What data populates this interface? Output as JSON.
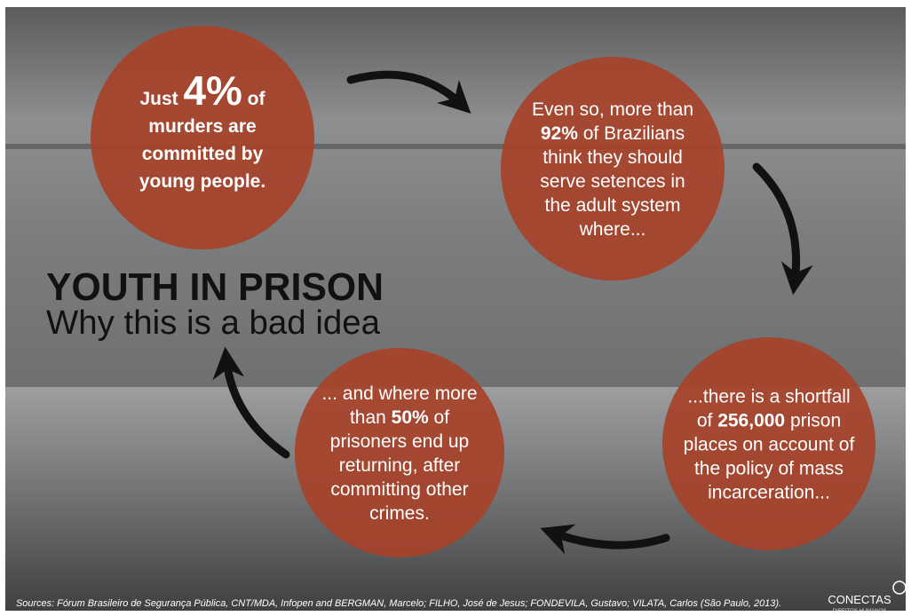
{
  "title": "YOUTH IN PRISON",
  "subtitle": "Why this is a bad idea",
  "circles": [
    {
      "lines": [
        [
          {
            "text": "Just ",
            "style": "bold"
          },
          {
            "text": "4%",
            "style": "big"
          },
          {
            "text": " of",
            "style": "bold"
          }
        ],
        [
          {
            "text": "murders are",
            "style": "bold"
          }
        ],
        [
          {
            "text": "committed by",
            "style": "bold"
          }
        ],
        [
          {
            "text": "young people.",
            "style": "bold"
          }
        ]
      ]
    },
    {
      "lines": [
        [
          {
            "text": "Even so, more than",
            "style": "normal"
          }
        ],
        [
          {
            "text": "92%",
            "style": "bold"
          },
          {
            "text": " of Brazilians",
            "style": "normal"
          }
        ],
        [
          {
            "text": "think they should",
            "style": "normal"
          }
        ],
        [
          {
            "text": "serve setences in",
            "style": "normal"
          }
        ],
        [
          {
            "text": "the adult system",
            "style": "normal"
          }
        ],
        [
          {
            "text": "where...",
            "style": "normal"
          }
        ]
      ]
    },
    {
      "lines": [
        [
          {
            "text": "...there is a shortfall",
            "style": "normal"
          }
        ],
        [
          {
            "text": "of ",
            "style": "normal"
          },
          {
            "text": "256,000",
            "style": "bold"
          },
          {
            "text": " prison",
            "style": "normal"
          }
        ],
        [
          {
            "text": "places on account of",
            "style": "normal"
          }
        ],
        [
          {
            "text": "the policy of mass",
            "style": "normal"
          }
        ],
        [
          {
            "text": "incarceration...",
            "style": "normal"
          }
        ]
      ]
    },
    {
      "lines": [
        [
          {
            "text": "... and where more",
            "style": "normal"
          }
        ],
        [
          {
            "text": "than ",
            "style": "normal"
          },
          {
            "text": "50%",
            "style": "bold"
          },
          {
            "text": " of",
            "style": "normal"
          }
        ],
        [
          {
            "text": "prisoners end up",
            "style": "normal"
          }
        ],
        [
          {
            "text": "returning, after",
            "style": "normal"
          }
        ],
        [
          {
            "text": "committing other",
            "style": "normal"
          }
        ],
        [
          {
            "text": "crimes.",
            "style": "normal"
          }
        ]
      ]
    }
  ],
  "sources": "Sources: Fórum Brasileiro de Segurança Pública, CNT/MDA, Infopen and BERGMAN, Marcelo; FILHO, José de Jesus; FONDEVILA, Gustavo; VILATA, Carlos (São Paulo, 2013).",
  "logo": {
    "name": "CONECTAS",
    "tagline": "DIREITOS HUMANOS"
  }
}
